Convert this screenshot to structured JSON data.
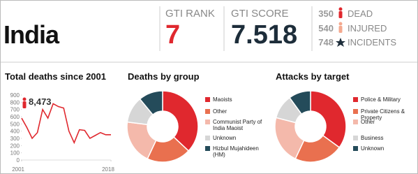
{
  "header": {
    "country": "India",
    "rank_label": "GTI RANK",
    "rank": 7,
    "score_label": "GTI SCORE",
    "score": 7.518,
    "counts": [
      {
        "value": 350,
        "label": "DEAD"
      },
      {
        "value": 540,
        "label": "INJURED"
      },
      {
        "value": 748,
        "label": "INCIDENTS"
      }
    ]
  },
  "chart_data": [
    {
      "type": "line",
      "title": "Total deaths since 2001",
      "annotation": "8,473",
      "color": "#e0282e",
      "x": [
        2001,
        2002,
        2003,
        2004,
        2005,
        2006,
        2007,
        2008,
        2009,
        2010,
        2011,
        2012,
        2013,
        2014,
        2015,
        2016,
        2017,
        2018
      ],
      "values": [
        580,
        450,
        300,
        380,
        700,
        580,
        780,
        740,
        720,
        400,
        240,
        420,
        410,
        300,
        340,
        380,
        350,
        350
      ],
      "xlim": [
        2001,
        2018
      ],
      "xticks": [
        2001,
        2018
      ],
      "ylim": [
        0,
        900
      ],
      "yticks": [
        0,
        100,
        200,
        300,
        400,
        500,
        600,
        700,
        800,
        900
      ]
    },
    {
      "type": "pie",
      "title": "Deaths by group",
      "categories": [
        "Maoists",
        "Other",
        "Communist Party of India Maoist",
        "Unknown",
        "Hizbul Mujahideen (HM)"
      ],
      "values": [
        37,
        20,
        20,
        12,
        11
      ],
      "colors": [
        "#e0282e",
        "#e9704f",
        "#f4b9ab",
        "#d6d6d6",
        "#244b5a"
      ]
    },
    {
      "type": "pie",
      "title": "Attacks by target",
      "categories": [
        "Police & Military",
        "Private Citizens & Property",
        "Other",
        "Business",
        "Unknown"
      ],
      "values": [
        35,
        22,
        22,
        11,
        10
      ],
      "colors": [
        "#e0282e",
        "#e9704f",
        "#f4b9ab",
        "#d6d6d6",
        "#244b5a"
      ]
    }
  ]
}
